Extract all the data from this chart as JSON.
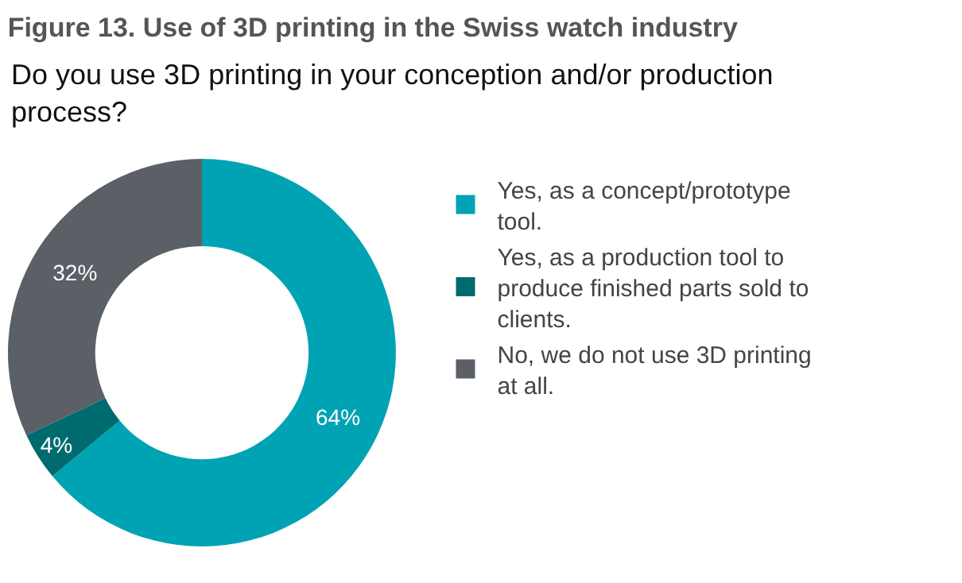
{
  "chart_data": {
    "type": "donut",
    "title": "Figure 13. Use of 3D printing in the Swiss watch industry",
    "subtitle": "Do you use 3D printing in your conception and/or production process?",
    "categories": [
      "Yes, as a concept/prototype tool.",
      "Yes, as a production tool to produce finished parts sold to clients.",
      "No, we do not use 3D printing at all."
    ],
    "values": [
      64,
      4,
      32
    ],
    "colors": [
      "#00a3b4",
      "#006b6e",
      "#5b5f66"
    ],
    "value_labels": [
      "64%",
      "4%",
      "32%"
    ],
    "legend": "right"
  }
}
